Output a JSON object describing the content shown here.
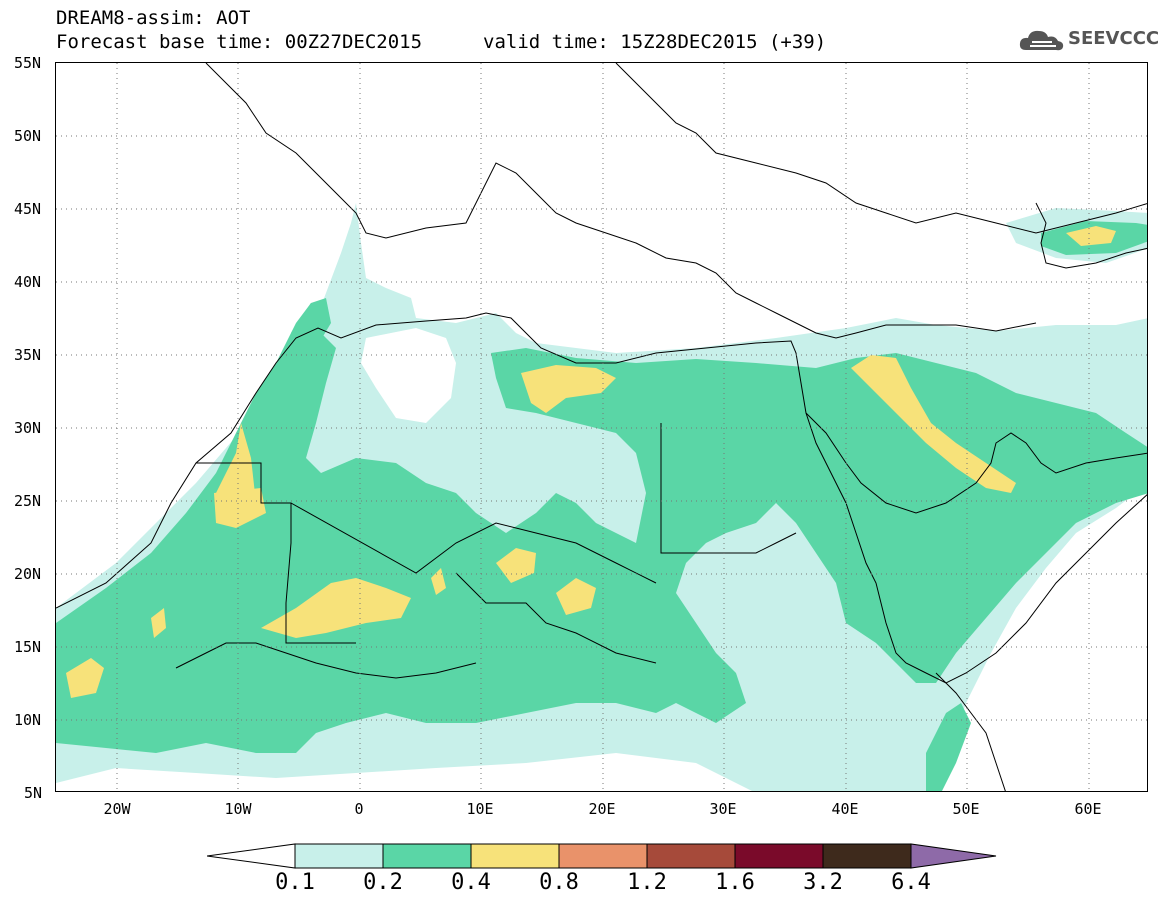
{
  "header": {
    "title_line_1": "DREAM8-assim: AOT",
    "title_line_2": "Forecast base time: 00Z27DEC2015",
    "valid_time": "valid time: 15Z28DEC2015 (+39)",
    "logo_text": "SEEVCCC"
  },
  "map": {
    "latitude_labels": [
      "55N",
      "50N",
      "45N",
      "40N",
      "35N",
      "30N",
      "25N",
      "20N",
      "15N",
      "10N",
      "5N"
    ],
    "longitude_labels": [
      "20W",
      "10W",
      "0",
      "10E",
      "20E",
      "30E",
      "40E",
      "50E",
      "60E"
    ],
    "lat_range": [
      5,
      55
    ],
    "lon_range": [
      -25,
      65
    ],
    "gridlines": "dotted"
  },
  "legend": {
    "levels": [
      "0.1",
      "0.2",
      "0.4",
      "0.8",
      "1.2",
      "1.6",
      "3.2",
      "6.4"
    ],
    "colors": {
      "below": "#ffffff",
      "0.1-0.2": "#c8f0ea",
      "0.2-0.4": "#5ad6a6",
      "0.4-0.8": "#f7e27a",
      "0.8-1.2": "#e9926a",
      "1.2-1.6": "#a64a3a",
      "1.6-3.2": "#7a0a2a",
      "3.2-6.4": "#3e2a1c",
      "above": "#8e6aa8"
    }
  }
}
